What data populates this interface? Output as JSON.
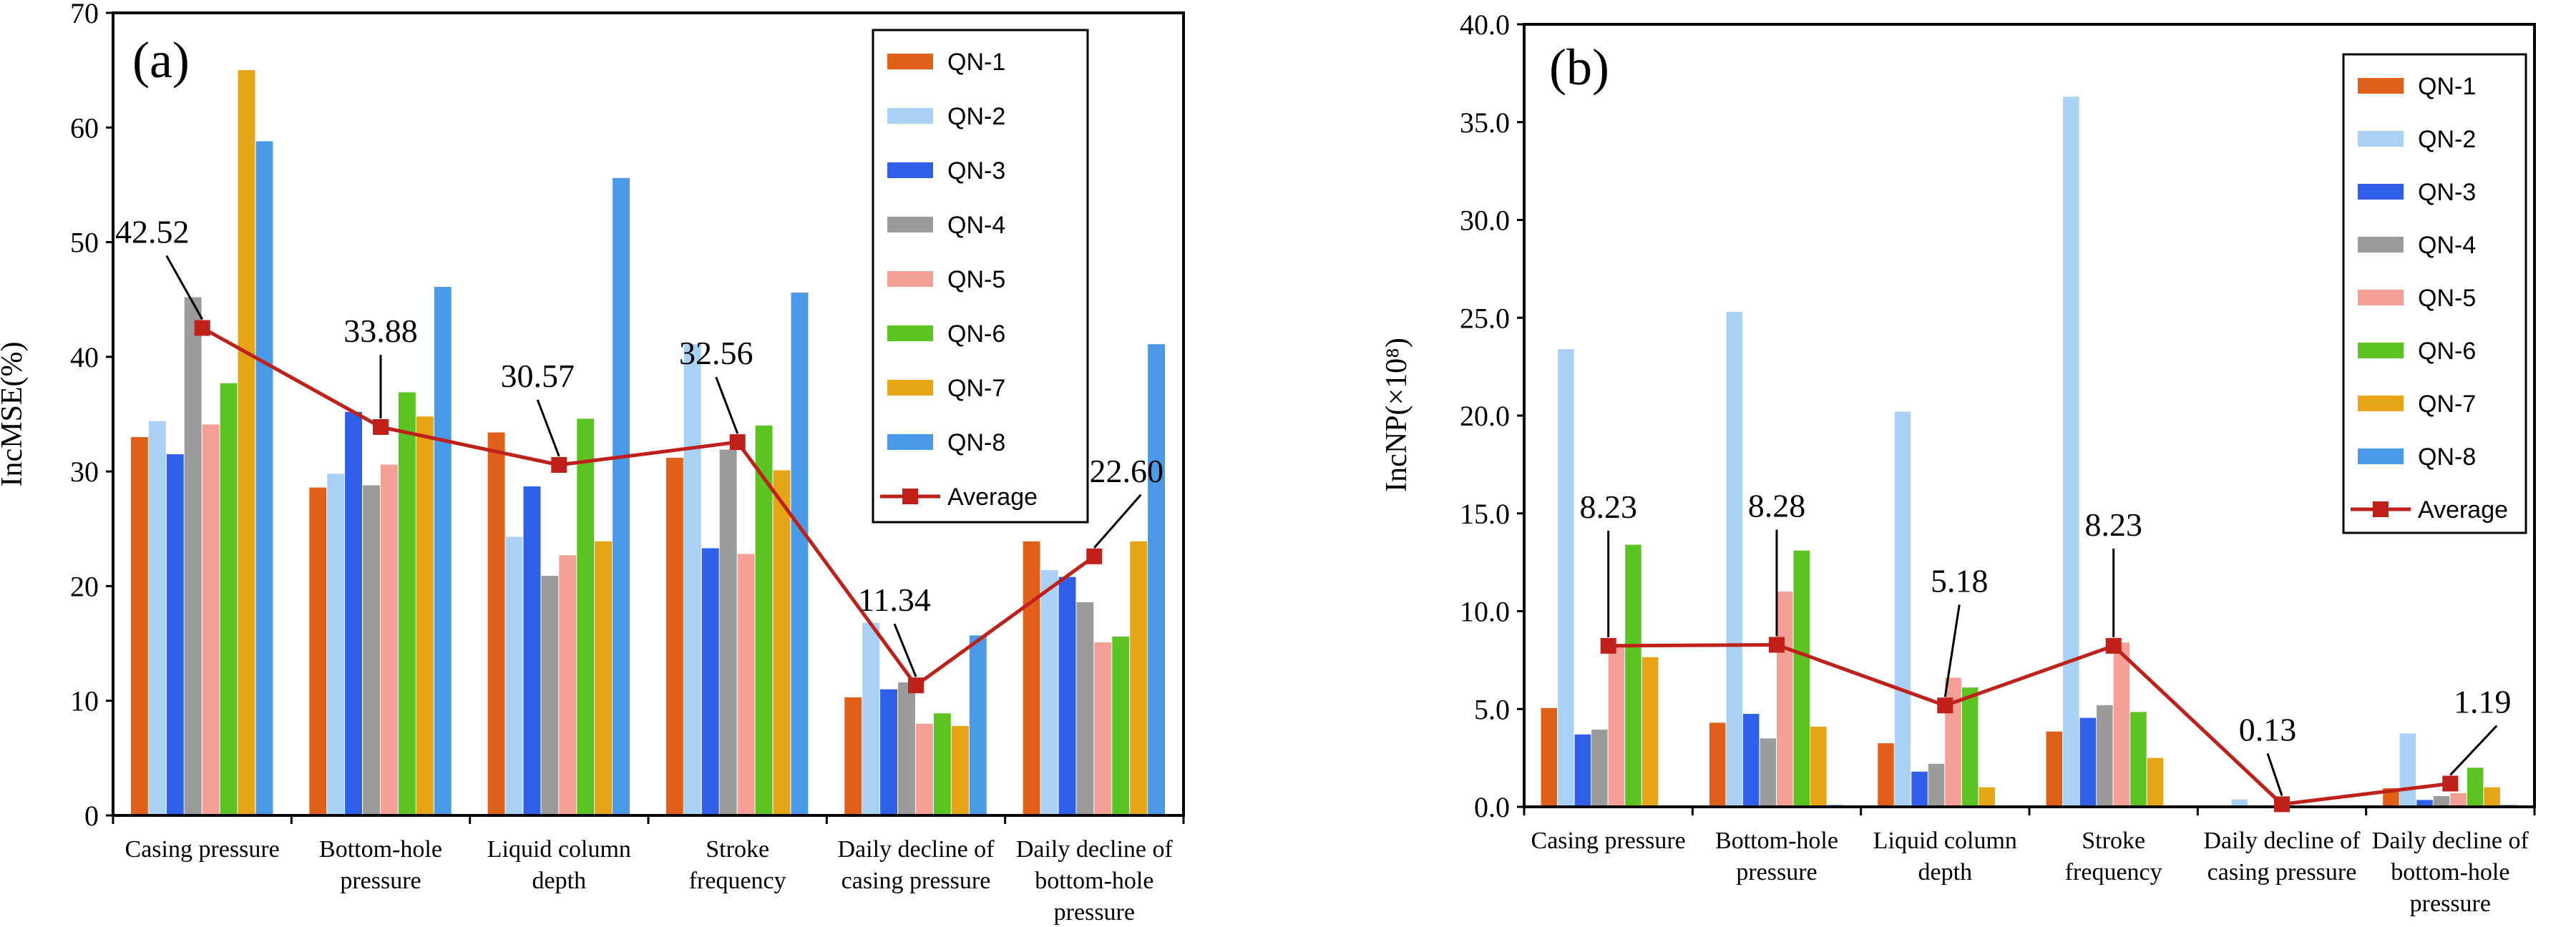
{
  "chart_data": [
    {
      "type": "bar",
      "panel_label": "(a)",
      "ylabel": "IncMSE(%)",
      "ylim": [
        0,
        70
      ],
      "yticks": [
        "0",
        "10",
        "20",
        "30",
        "40",
        "50",
        "60",
        "70"
      ],
      "ytick_values": [
        0,
        10,
        20,
        30,
        40,
        50,
        60,
        70
      ],
      "categories": [
        [
          "Casing pressure"
        ],
        [
          "Bottom-hole",
          "pressure"
        ],
        [
          "Liquid column",
          "depth"
        ],
        [
          "Stroke",
          "frequency"
        ],
        [
          "Daily decline of",
          "casing pressure"
        ],
        [
          "Daily decline of",
          "bottom-hole",
          "pressure"
        ]
      ],
      "series": [
        {
          "name": "QN-1",
          "color": "#E0601A",
          "values": [
            33.0,
            28.6,
            33.4,
            31.2,
            10.3,
            23.9
          ]
        },
        {
          "name": "QN-2",
          "color": "#A9D1F5",
          "values": [
            34.4,
            29.8,
            24.3,
            41.1,
            16.8,
            21.4
          ]
        },
        {
          "name": "QN-3",
          "color": "#2F5FE8",
          "values": [
            31.5,
            35.2,
            28.7,
            23.3,
            11.0,
            20.8
          ]
        },
        {
          "name": "QN-4",
          "color": "#9B9B9B",
          "values": [
            45.2,
            28.8,
            20.9,
            31.9,
            11.6,
            18.6
          ]
        },
        {
          "name": "QN-5",
          "color": "#F4A096",
          "values": [
            34.1,
            30.6,
            22.7,
            22.8,
            8.0,
            15.1
          ]
        },
        {
          "name": "QN-6",
          "color": "#5BC422",
          "values": [
            37.7,
            36.9,
            34.6,
            34.0,
            8.9,
            15.6
          ]
        },
        {
          "name": "QN-7",
          "color": "#E6A417",
          "values": [
            65.0,
            34.8,
            23.9,
            30.1,
            7.8,
            23.9
          ]
        },
        {
          "name": "QN-8",
          "color": "#4A9AE8",
          "values": [
            58.8,
            46.1,
            55.6,
            45.6,
            15.7,
            41.1
          ]
        }
      ],
      "average": {
        "name": "Average",
        "color": "#C0201A",
        "values": [
          42.52,
          33.88,
          30.57,
          32.56,
          11.34,
          22.6
        ]
      },
      "average_labels": [
        "42.52",
        "33.88",
        "30.57",
        "32.56",
        "11.34",
        "22.60"
      ]
    },
    {
      "type": "bar",
      "panel_label": "(b)",
      "ylabel": "IncNP(×10⁸)",
      "ylim": [
        0,
        40
      ],
      "yticks": [
        "0.0",
        "5.0",
        "10.0",
        "15.0",
        "20.0",
        "25.0",
        "30.0",
        "35.0",
        "40.0"
      ],
      "ytick_values": [
        0,
        5,
        10,
        15,
        20,
        25,
        30,
        35,
        40
      ],
      "categories": [
        [
          "Casing pressure"
        ],
        [
          "Bottom-hole",
          "pressure"
        ],
        [
          "Liquid column",
          "depth"
        ],
        [
          "Stroke",
          "frequency"
        ],
        [
          "Daily decline of",
          "casing pressure"
        ],
        [
          "Daily decline of",
          "bottom-hole",
          "pressure"
        ]
      ],
      "series": [
        {
          "name": "QN-1",
          "color": "#E0601A",
          "values": [
            5.05,
            4.3,
            3.25,
            3.85,
            0.0,
            0.95
          ]
        },
        {
          "name": "QN-2",
          "color": "#A9D1F5",
          "values": [
            23.4,
            25.3,
            20.2,
            36.3,
            0.38,
            3.75
          ]
        },
        {
          "name": "QN-3",
          "color": "#2F5FE8",
          "values": [
            3.7,
            4.75,
            1.8,
            4.55,
            0.05,
            0.35
          ]
        },
        {
          "name": "QN-4",
          "color": "#9B9B9B",
          "values": [
            3.95,
            3.5,
            2.2,
            5.2,
            0.05,
            0.55
          ]
        },
        {
          "name": "QN-5",
          "color": "#F4A096",
          "values": [
            8.2,
            11.0,
            6.6,
            8.4,
            0.05,
            0.7
          ]
        },
        {
          "name": "QN-6",
          "color": "#5BC422",
          "values": [
            13.4,
            13.1,
            6.1,
            4.85,
            0.05,
            2.0
          ]
        },
        {
          "name": "QN-7",
          "color": "#E6A417",
          "values": [
            7.65,
            4.1,
            1.0,
            2.5,
            0.05,
            1.0
          ]
        },
        {
          "name": "QN-8",
          "color": "#4A9AE8",
          "values": [
            0.05,
            0.1,
            0.05,
            0.05,
            0.05,
            0.1
          ]
        }
      ],
      "average": {
        "name": "Average",
        "color": "#C0201A",
        "values": [
          8.23,
          8.28,
          5.18,
          8.23,
          0.13,
          1.19
        ]
      },
      "average_labels": [
        "8.23",
        "8.28",
        "5.18",
        "8.23",
        "0.13",
        "1.19"
      ]
    }
  ]
}
